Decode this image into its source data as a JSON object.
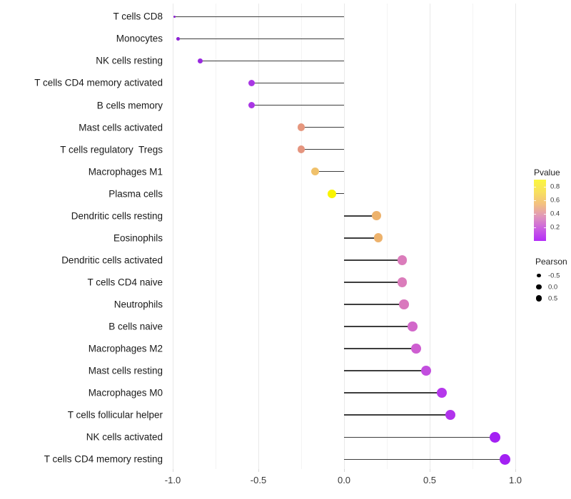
{
  "figure": {
    "background": "#FFFFFF"
  },
  "chart_data": {
    "type": "lollipop",
    "orientation": "horizontal",
    "title": "",
    "xlabel": "",
    "ylabel": "",
    "baseline": 0.0,
    "xlim": [
      -1.05,
      1.1
    ],
    "grid": "major+minor vertical",
    "x_ticks": [
      {
        "value": -1.0,
        "label": "-1.0"
      },
      {
        "value": -0.5,
        "label": "-0.5"
      },
      {
        "value": 0.0,
        "label": "0.0"
      },
      {
        "value": 0.5,
        "label": "0.5"
      },
      {
        "value": 1.0,
        "label": "1.0"
      }
    ],
    "x_minor_gridlines": [
      -0.75,
      -0.25,
      0.25,
      0.75
    ],
    "points": [
      {
        "category": "T cells CD8",
        "pearson": -0.99,
        "color": "#8A1FD0"
      },
      {
        "category": "Monocytes",
        "pearson": -0.97,
        "color": "#8E23D4"
      },
      {
        "category": "NK cells resting",
        "pearson": -0.84,
        "color": "#9929DF"
      },
      {
        "category": "T cells CD4 memory activated",
        "pearson": -0.54,
        "color": "#A936E4"
      },
      {
        "category": "B cells memory",
        "pearson": -0.54,
        "color": "#A936E4"
      },
      {
        "category": "Mast cells activated",
        "pearson": -0.25,
        "color": "#E6977E"
      },
      {
        "category": "T cells regulatory  Tregs",
        "pearson": -0.25,
        "color": "#E5957F"
      },
      {
        "category": "Macrophages M1",
        "pearson": -0.17,
        "color": "#F0C16B"
      },
      {
        "category": "Plasma cells",
        "pearson": -0.07,
        "color": "#F9F400"
      },
      {
        "category": "Dendritic cells resting",
        "pearson": 0.19,
        "color": "#EDB26C"
      },
      {
        "category": "Eosinophils",
        "pearson": 0.2,
        "color": "#EDB26C"
      },
      {
        "category": "Dendritic cells activated",
        "pearson": 0.34,
        "color": "#DB7CBB"
      },
      {
        "category": "T cells CD4 naive",
        "pearson": 0.34,
        "color": "#DB7CBB"
      },
      {
        "category": "Neutrophils",
        "pearson": 0.35,
        "color": "#D978BD"
      },
      {
        "category": "B cells naive",
        "pearson": 0.4,
        "color": "#D268CA"
      },
      {
        "category": "Macrophages M2",
        "pearson": 0.42,
        "color": "#CE5ED1"
      },
      {
        "category": "Mast cells resting",
        "pearson": 0.48,
        "color": "#C24EDE"
      },
      {
        "category": "Macrophages M0",
        "pearson": 0.57,
        "color": "#B538EB"
      },
      {
        "category": "T cells follicular helper",
        "pearson": 0.62,
        "color": "#B133EC"
      },
      {
        "category": "NK cells activated",
        "pearson": 0.88,
        "color": "#A321F3"
      },
      {
        "category": "T cells CD4 memory resting",
        "pearson": 0.94,
        "color": "#A321F3"
      }
    ],
    "legend_pvalue": {
      "title": "Pvalue",
      "ticks": [
        {
          "value": 0.8,
          "label": "0.8"
        },
        {
          "value": 0.6,
          "label": "0.6"
        },
        {
          "value": 0.4,
          "label": "0.4"
        },
        {
          "value": 0.2,
          "label": "0.2"
        }
      ],
      "range": [
        0.0,
        0.905
      ],
      "gradient_top_to_bottom": [
        "#FBF73E",
        "#F8E05E",
        "#F3C080",
        "#E096BB",
        "#CB60E1",
        "#B42CF8"
      ]
    },
    "legend_pearson": {
      "title": "Pearson",
      "items": [
        {
          "value": -0.5,
          "label": "-0.5"
        },
        {
          "value": 0.0,
          "label": "0.0"
        },
        {
          "value": 0.5,
          "label": "0.5"
        }
      ]
    },
    "style_colors": {
      "stem": "#3D3D3D",
      "grid_major": "#E9E9E9",
      "grid_minor": "#F3F3F3",
      "axis_tick": "#D9D9D9",
      "axis_text": "#383838",
      "category_text": "#1A1A1A",
      "legend_text": "#3A3A3A",
      "legend_dot": "#000000"
    }
  }
}
